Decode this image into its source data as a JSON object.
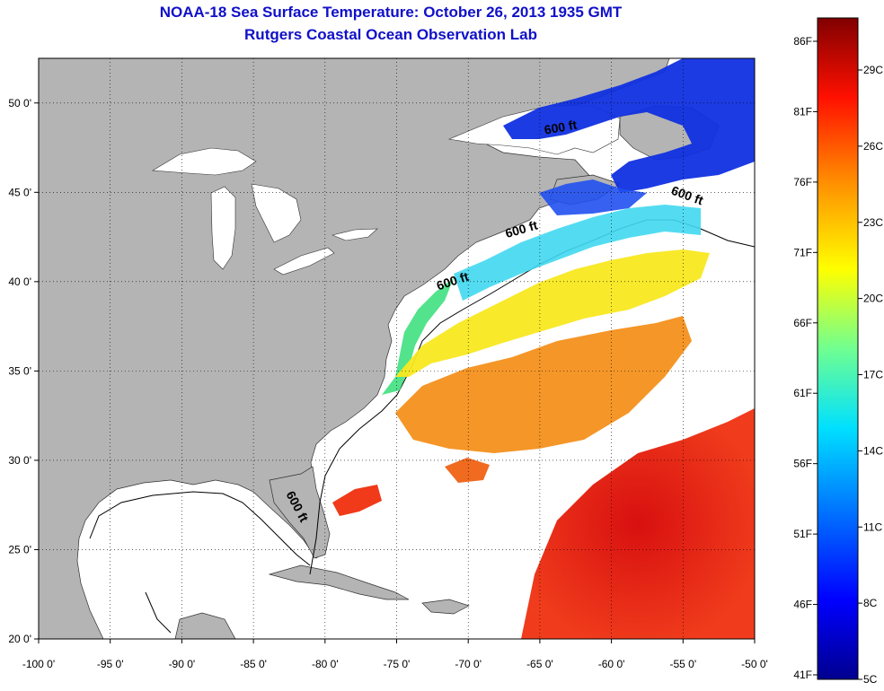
{
  "header": {
    "title": "NOAA-18 Sea Surface Temperature:  October 26, 2013 1935 GMT",
    "subtitle": "Rutgers Coastal Ocean Observation Lab"
  },
  "map": {
    "lon_range": [
      -100,
      -50
    ],
    "lat_range": [
      20,
      52.5
    ],
    "lon_ticks": [
      {
        "value": -100,
        "label": "-100 0'"
      },
      {
        "value": -95,
        "label": "-95 0'"
      },
      {
        "value": -90,
        "label": "-90 0'"
      },
      {
        "value": -85,
        "label": "-85 0'"
      },
      {
        "value": -80,
        "label": "-80 0'"
      },
      {
        "value": -75,
        "label": "-75 0'"
      },
      {
        "value": -70,
        "label": "-70 0'"
      },
      {
        "value": -65,
        "label": "-65 0'"
      },
      {
        "value": -60,
        "label": "-60 0'"
      },
      {
        "value": -55,
        "label": "-55 0'"
      },
      {
        "value": -50,
        "label": "-50 0'"
      }
    ],
    "lat_ticks": [
      {
        "value": 20,
        "label": "20 0'"
      },
      {
        "value": 25,
        "label": "25 0'"
      },
      {
        "value": 30,
        "label": "30 0'"
      },
      {
        "value": 35,
        "label": "35 0'"
      },
      {
        "value": 40,
        "label": "40 0'"
      },
      {
        "value": 45,
        "label": "45 0'"
      },
      {
        "value": 50,
        "label": "50 0'"
      }
    ],
    "contour_labels": [
      {
        "text": "600 ft",
        "lon": -82.2,
        "lat": 27.3,
        "rotate": 62
      },
      {
        "text": "600 ft",
        "lon": -71.0,
        "lat": 39.8,
        "rotate": -18
      },
      {
        "text": "600 ft",
        "lon": -66.2,
        "lat": 42.7,
        "rotate": -16
      },
      {
        "text": "600 ft",
        "lon": -54.8,
        "lat": 44.6,
        "rotate": 20
      },
      {
        "text": "600 ft",
        "lon": -63.5,
        "lat": 48.4,
        "rotate": -10
      }
    ],
    "land_color": "#b4b4b4",
    "no_data_color": "#ffffff"
  },
  "colorbar": {
    "f_labels": [
      "86F",
      "81F",
      "76F",
      "71F",
      "66F",
      "61F",
      "56F",
      "51F",
      "46F",
      "41F"
    ],
    "c_labels": [
      "29C",
      "26C",
      "23C",
      "20C",
      "17C",
      "14C",
      "11C",
      "8C",
      "5C"
    ],
    "colors": [
      "#00008f",
      "#0000ff",
      "#0080ff",
      "#00ffff",
      "#80ff80",
      "#ffff00",
      "#ff8000",
      "#ff0000",
      "#800000"
    ]
  }
}
